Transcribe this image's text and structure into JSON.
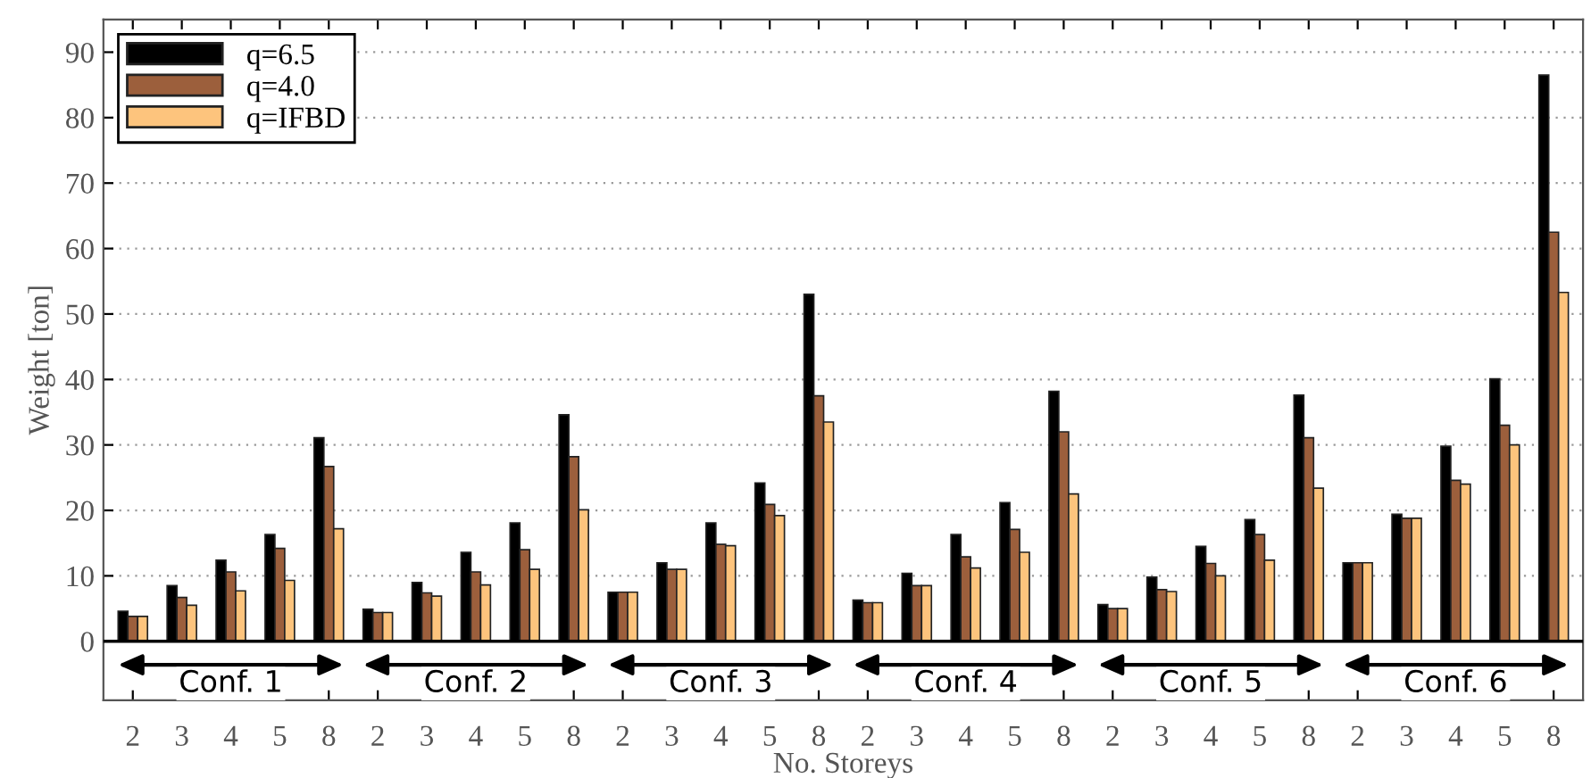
{
  "chart_data": {
    "type": "bar",
    "xlabel": "No. Storeys",
    "ylabel": "Weight [ton]",
    "categories": [
      "2",
      "3",
      "4",
      "5",
      "8",
      "2",
      "3",
      "4",
      "5",
      "8",
      "2",
      "3",
      "4",
      "5",
      "8",
      "2",
      "3",
      "4",
      "5",
      "8",
      "2",
      "3",
      "4",
      "5",
      "8",
      "2",
      "3",
      "4",
      "5",
      "8"
    ],
    "series": [
      {
        "name": "q=6.5",
        "color": "#000000",
        "values": [
          4.6,
          8.5,
          12.4,
          16.3,
          31.1,
          4.9,
          9.0,
          13.6,
          18.1,
          34.6,
          7.5,
          12.0,
          18.1,
          24.2,
          53.0,
          6.3,
          10.4,
          16.3,
          21.2,
          38.2,
          5.6,
          9.8,
          14.5,
          18.6,
          37.6,
          12.0,
          19.4,
          29.8,
          40.1,
          86.5
        ]
      },
      {
        "name": "q=4.0",
        "color": "#9c5f3c",
        "values": [
          3.8,
          6.7,
          10.6,
          14.2,
          26.7,
          4.4,
          7.4,
          10.6,
          14.0,
          28.2,
          7.5,
          11.0,
          14.8,
          20.9,
          37.5,
          5.9,
          8.5,
          12.9,
          17.1,
          32.0,
          5.0,
          7.9,
          11.9,
          16.3,
          31.1,
          12.0,
          18.8,
          24.6,
          33.0,
          62.5
        ]
      },
      {
        "name": "q=IFBD",
        "color": "#fdc47d",
        "values": [
          3.8,
          5.5,
          7.7,
          9.3,
          17.2,
          4.4,
          6.9,
          8.6,
          11.0,
          20.1,
          7.5,
          11.0,
          14.6,
          19.2,
          33.5,
          5.9,
          8.5,
          11.2,
          13.6,
          22.5,
          5.0,
          7.6,
          10.0,
          12.4,
          23.4,
          12.0,
          18.8,
          24.0,
          30.0,
          53.3
        ]
      }
    ],
    "ylim": [
      -9,
      95
    ],
    "yticks": [
      0,
      10,
      20,
      30,
      40,
      50,
      60,
      70,
      80,
      90
    ],
    "grid": "y",
    "legend": "top left",
    "annotations": [
      "Conf. 1",
      "Conf. 2",
      "Conf. 3",
      "Conf. 4",
      "Conf. 5",
      "Conf. 6"
    ]
  }
}
